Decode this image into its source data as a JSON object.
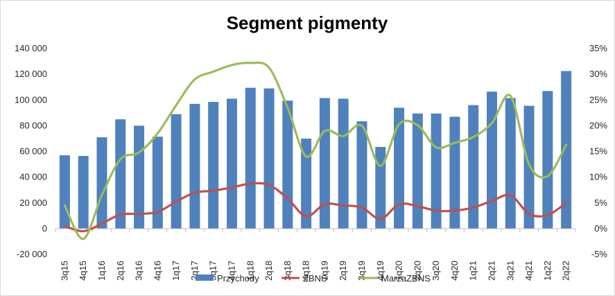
{
  "chart_data": {
    "type": "bar+line",
    "title": "Segment pigmenty",
    "categories": [
      "3q15",
      "4q15",
      "1q16",
      "2q16",
      "3q16",
      "4q16",
      "1q17",
      "2q17",
      "3q17",
      "4q17",
      "1q18",
      "2q18",
      "3q18",
      "4q18",
      "1q19",
      "2q19",
      "3q19",
      "4q19",
      "1q20",
      "2q20",
      "3q20",
      "4q20",
      "1q21",
      "2q21",
      "3q21",
      "4q21",
      "1q22",
      "2q22"
    ],
    "left_axis": {
      "min": -20000,
      "max": 140000,
      "step": 20000,
      "tick_labels": [
        "-20 000",
        "0",
        "20 000",
        "40 000",
        "60 000",
        "80 000",
        "100 000",
        "120 000",
        "140 000"
      ]
    },
    "right_axis": {
      "min": -5,
      "max": 35,
      "step": 5,
      "tick_labels": [
        "-5%",
        "0%",
        "5%",
        "10%",
        "15%",
        "20%",
        "25%",
        "30%",
        "35%"
      ]
    },
    "series": [
      {
        "name": "Przychody",
        "kind": "bar",
        "axis": "left",
        "color": "#4f81bd",
        "values": [
          57000,
          56500,
          71000,
          85000,
          80000,
          71500,
          89000,
          97000,
          98500,
          101000,
          109500,
          109000,
          99500,
          70000,
          101500,
          101000,
          83500,
          63500,
          94000,
          89500,
          89500,
          87000,
          96000,
          106500,
          101500,
          95500,
          107000,
          122500
        ]
      },
      {
        "name": "ZBNS",
        "kind": "line",
        "axis": "left",
        "color": "#c0504d",
        "values": [
          2000,
          -2000,
          4000,
          11000,
          11500,
          13000,
          21000,
          28000,
          29500,
          32000,
          35000,
          34000,
          23500,
          9500,
          19000,
          18000,
          16500,
          7500,
          19000,
          17500,
          14000,
          14000,
          16500,
          21500,
          26000,
          11500,
          10500,
          20000
        ]
      },
      {
        "name": "MarżaZBNS",
        "kind": "line",
        "axis": "right",
        "color": "#9bbb59",
        "values": [
          4.5,
          -2,
          6.5,
          13.5,
          14.8,
          18.5,
          24,
          29,
          30.5,
          31.8,
          32.2,
          31.3,
          23.5,
          14,
          19,
          18,
          20,
          12.2,
          20.3,
          20.1,
          15.8,
          16.7,
          17.8,
          20.5,
          25.8,
          12.5,
          10.2,
          16.3
        ]
      }
    ],
    "legend": {
      "position": "bottom",
      "entries": [
        "Przychody",
        "ZBNS",
        "MarżaZBNS"
      ]
    },
    "grid": false
  }
}
